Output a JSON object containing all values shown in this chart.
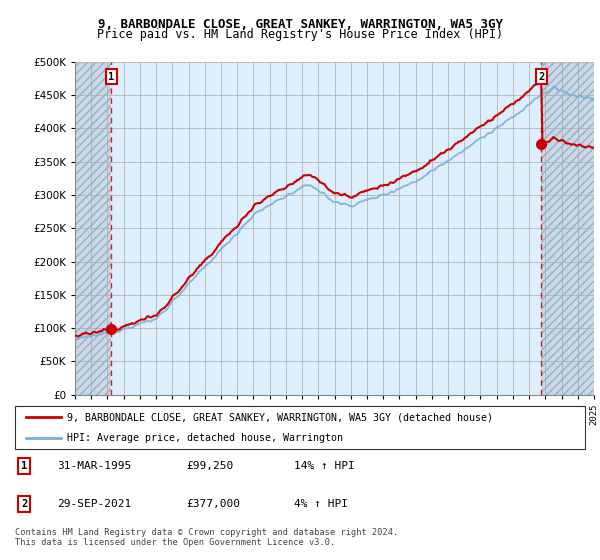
{
  "title": "9, BARBONDALE CLOSE, GREAT SANKEY, WARRINGTON, WA5 3GY",
  "subtitle": "Price paid vs. HM Land Registry's House Price Index (HPI)",
  "ylim": [
    0,
    500000
  ],
  "yticks": [
    0,
    50000,
    100000,
    150000,
    200000,
    250000,
    300000,
    350000,
    400000,
    450000,
    500000
  ],
  "ytick_labels": [
    "£0",
    "£50K",
    "£100K",
    "£150K",
    "£200K",
    "£250K",
    "£300K",
    "£350K",
    "£400K",
    "£450K",
    "£500K"
  ],
  "x_start_year": 1993,
  "x_end_year": 2025,
  "sale1_date": 1995.25,
  "sale1_price": 99250,
  "sale2_date": 2021.75,
  "sale2_price": 377000,
  "hpi_color": "#7ab0d4",
  "price_color": "#cc0000",
  "bg_plot_color": "#ddeeff",
  "bg_hatch_color": "#c8d8e8",
  "grid_color": "#aaaaaa",
  "legend_label1": "9, BARBONDALE CLOSE, GREAT SANKEY, WARRINGTON, WA5 3GY (detached house)",
  "legend_label2": "HPI: Average price, detached house, Warrington",
  "table_row1": [
    "1",
    "31-MAR-1995",
    "£99,250",
    "14% ↑ HPI"
  ],
  "table_row2": [
    "2",
    "29-SEP-2021",
    "£377,000",
    "4% ↑ HPI"
  ],
  "footnote": "Contains HM Land Registry data © Crown copyright and database right 2024.\nThis data is licensed under the Open Government Licence v3.0.",
  "title_fontsize": 9,
  "subtitle_fontsize": 8.5
}
